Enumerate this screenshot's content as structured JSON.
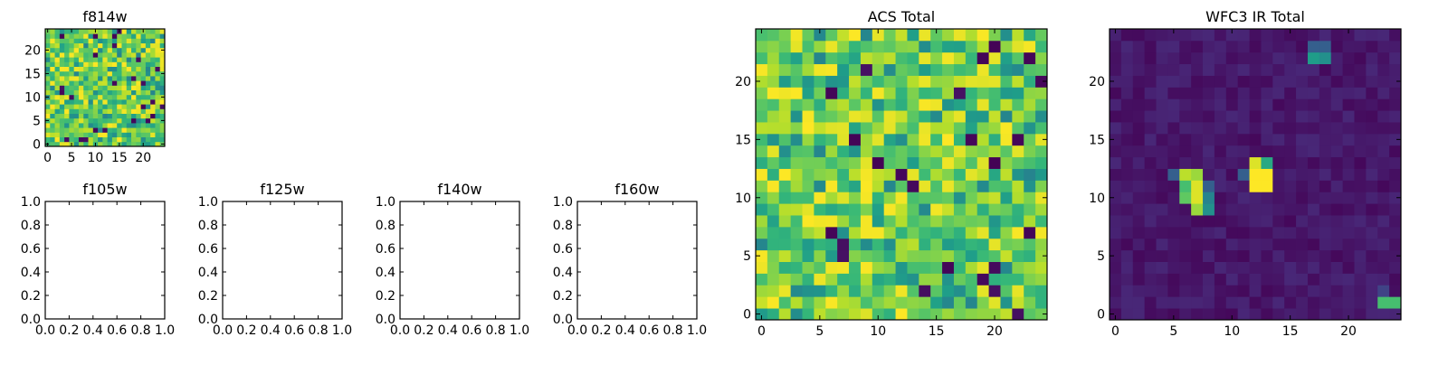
{
  "chart_data": [
    {
      "id": "f814w",
      "type": "heatmap",
      "title": "f814w",
      "grid_size": 25,
      "xlim": [
        -0.5,
        24.5
      ],
      "ylim": [
        -0.5,
        24.5
      ],
      "xticks": [
        0,
        5,
        10,
        15,
        20
      ],
      "yticks": [
        0,
        5,
        10,
        15,
        20
      ],
      "colormap": "viridis",
      "pattern": "noise"
    },
    {
      "id": "f105w",
      "type": "empty",
      "title": "f105w",
      "xlim": [
        0,
        1
      ],
      "ylim": [
        0,
        1
      ],
      "xticks": [
        "0.0",
        "0.2",
        "0.4",
        "0.6",
        "0.8",
        "1.0"
      ],
      "yticks": [
        "0.0",
        "0.2",
        "0.4",
        "0.6",
        "0.8",
        "1.0"
      ]
    },
    {
      "id": "f125w",
      "type": "empty",
      "title": "f125w",
      "xlim": [
        0,
        1
      ],
      "ylim": [
        0,
        1
      ],
      "xticks": [
        "0.0",
        "0.2",
        "0.4",
        "0.6",
        "0.8",
        "1.0"
      ],
      "yticks": [
        "0.0",
        "0.2",
        "0.4",
        "0.6",
        "0.8",
        "1.0"
      ]
    },
    {
      "id": "f140w",
      "type": "empty",
      "title": "f140w",
      "xlim": [
        0,
        1
      ],
      "ylim": [
        0,
        1
      ],
      "xticks": [
        "0.0",
        "0.2",
        "0.4",
        "0.6",
        "0.8",
        "1.0"
      ],
      "yticks": [
        "0.0",
        "0.2",
        "0.4",
        "0.6",
        "0.8",
        "1.0"
      ]
    },
    {
      "id": "f160w",
      "type": "empty",
      "title": "f160w",
      "xlim": [
        0,
        1
      ],
      "ylim": [
        0,
        1
      ],
      "xticks": [
        "0.0",
        "0.2",
        "0.4",
        "0.6",
        "0.8",
        "1.0"
      ],
      "yticks": [
        "0.0",
        "0.2",
        "0.4",
        "0.6",
        "0.8",
        "1.0"
      ]
    },
    {
      "id": "acs-total",
      "type": "heatmap",
      "title": "ACS Total",
      "grid_size": 25,
      "xlim": [
        -0.5,
        24.5
      ],
      "ylim": [
        -0.5,
        24.5
      ],
      "xticks": [
        0,
        5,
        10,
        15,
        20
      ],
      "yticks": [
        0,
        5,
        10,
        15,
        20
      ],
      "colormap": "viridis",
      "pattern": "noise"
    },
    {
      "id": "wfc3-ir-total",
      "type": "heatmap",
      "title": "WFC3 IR Total",
      "grid_size": 25,
      "xlim": [
        -0.5,
        24.5
      ],
      "ylim": [
        -0.5,
        24.5
      ],
      "xticks": [
        0,
        5,
        10,
        15,
        20
      ],
      "yticks": [
        0,
        5,
        10,
        15,
        20
      ],
      "colormap": "viridis",
      "pattern": "sources",
      "hotspots": [
        {
          "x": 6,
          "y": 12,
          "value": 0.9
        },
        {
          "x": 7,
          "y": 12,
          "value": 0.85
        },
        {
          "x": 6,
          "y": 11,
          "value": 0.7
        },
        {
          "x": 7,
          "y": 11,
          "value": 0.95
        },
        {
          "x": 6,
          "y": 10,
          "value": 0.75
        },
        {
          "x": 7,
          "y": 10,
          "value": 0.95
        },
        {
          "x": 8,
          "y": 10,
          "value": 0.45
        },
        {
          "x": 7,
          "y": 9,
          "value": 0.85
        },
        {
          "x": 8,
          "y": 9,
          "value": 0.5
        },
        {
          "x": 12,
          "y": 13,
          "value": 0.95
        },
        {
          "x": 13,
          "y": 13,
          "value": 0.6
        },
        {
          "x": 12,
          "y": 12,
          "value": 1.0
        },
        {
          "x": 13,
          "y": 12,
          "value": 1.0
        },
        {
          "x": 12,
          "y": 11,
          "value": 1.0
        },
        {
          "x": 13,
          "y": 11,
          "value": 1.0
        },
        {
          "x": 11,
          "y": 12,
          "value": 0.3
        },
        {
          "x": 5,
          "y": 12,
          "value": 0.3
        },
        {
          "x": 8,
          "y": 11,
          "value": 0.3
        },
        {
          "x": 17,
          "y": 22,
          "value": 0.55
        },
        {
          "x": 18,
          "y": 22,
          "value": 0.5
        },
        {
          "x": 17,
          "y": 23,
          "value": 0.3
        },
        {
          "x": 18,
          "y": 23,
          "value": 0.3
        },
        {
          "x": 23,
          "y": 1,
          "value": 0.7
        },
        {
          "x": 24,
          "y": 1,
          "value": 0.7
        },
        {
          "x": 23,
          "y": 2,
          "value": 0.2
        }
      ]
    }
  ]
}
